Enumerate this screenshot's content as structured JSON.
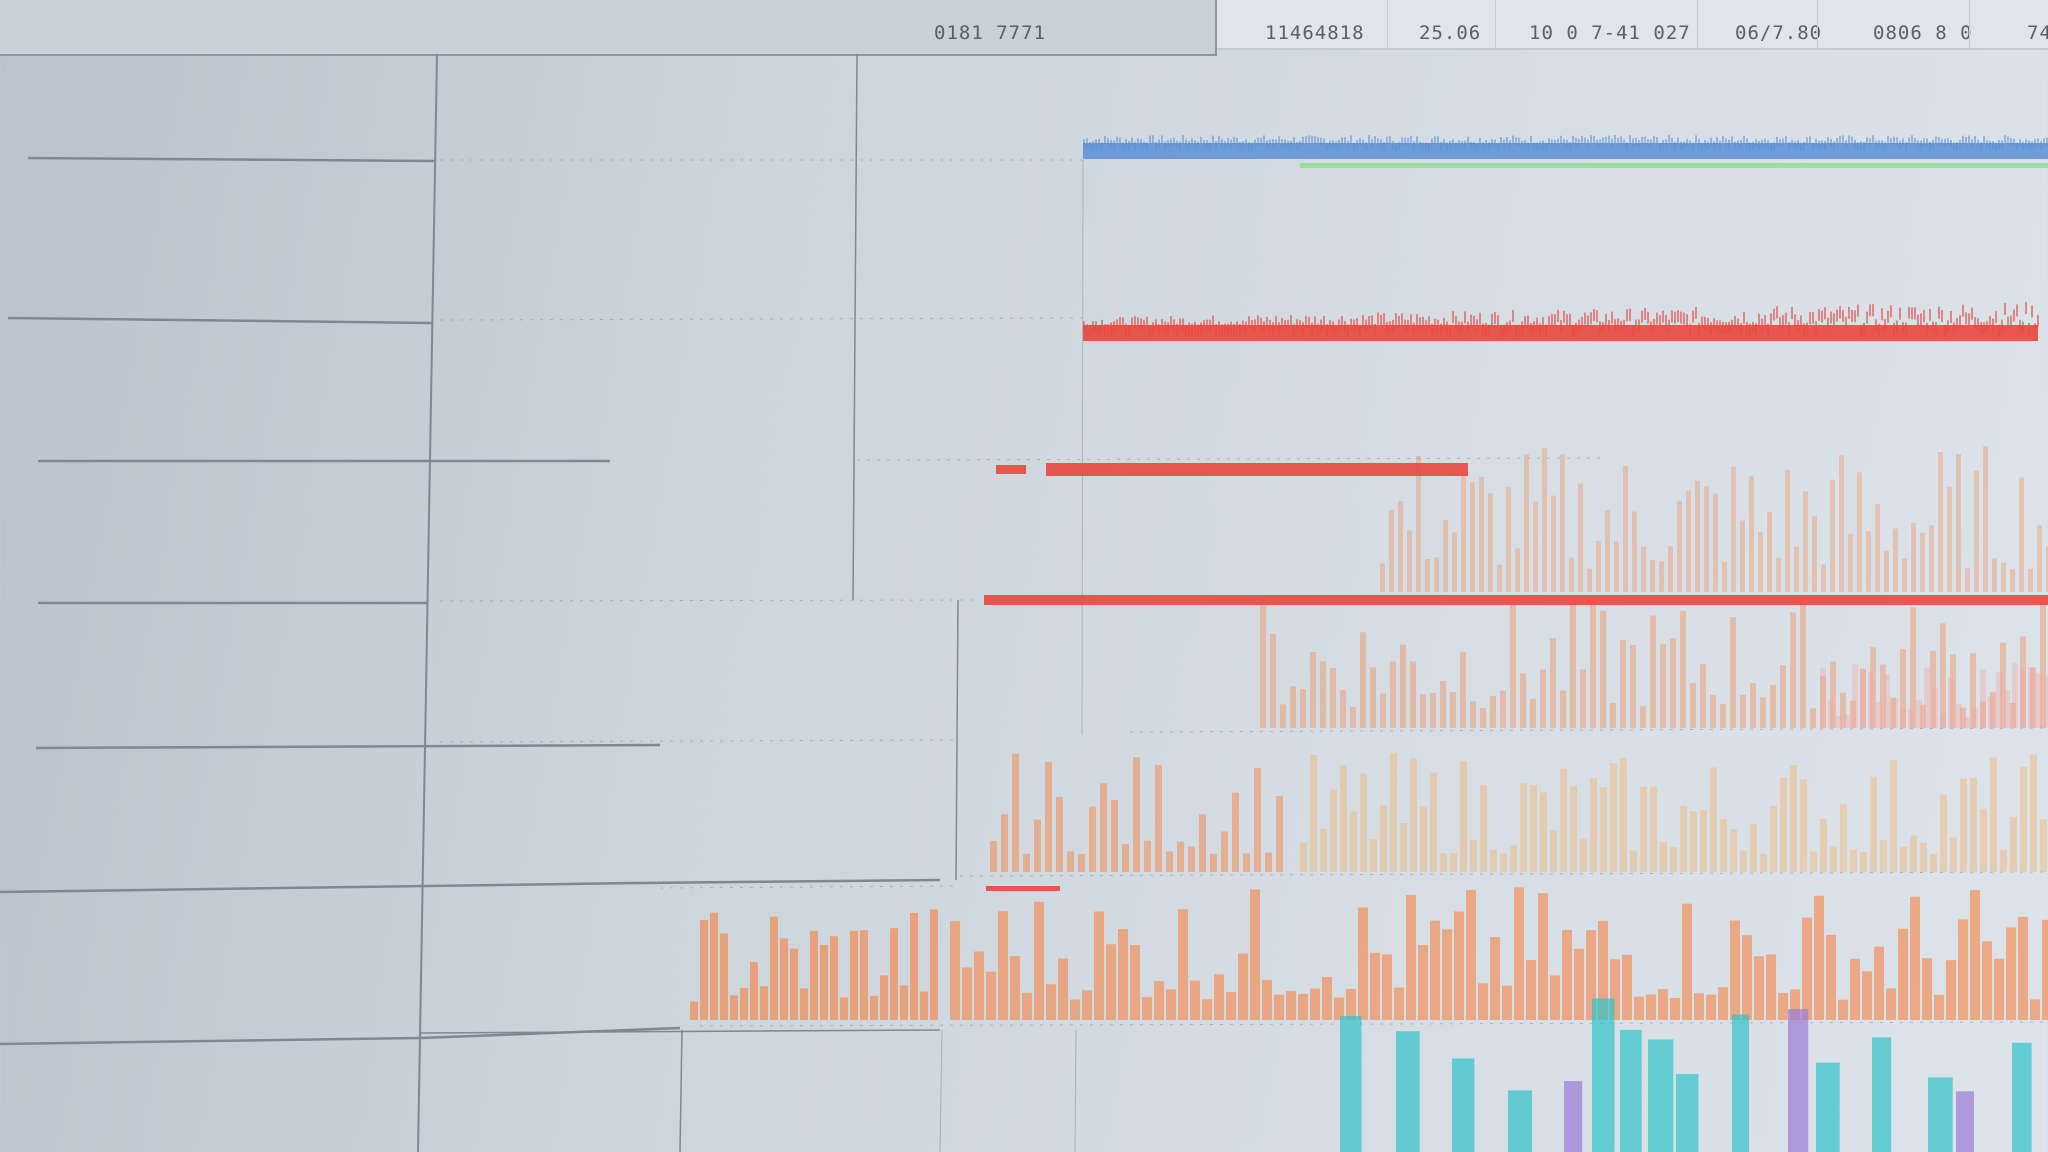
{
  "header": {
    "main_readout": "0181 7771",
    "readouts": [
      "11464818",
      "25.06",
      "10 0 7-41 027",
      "06/7.80",
      "0806 8 0",
      "74"
    ]
  },
  "colors": {
    "blue": "#5a8fd6",
    "green": "#8be08b",
    "red": "#e8483e",
    "orange": "#f28a4e",
    "teal": "#2fc3c9",
    "purple": "#9a7ad6"
  },
  "icons": []
}
